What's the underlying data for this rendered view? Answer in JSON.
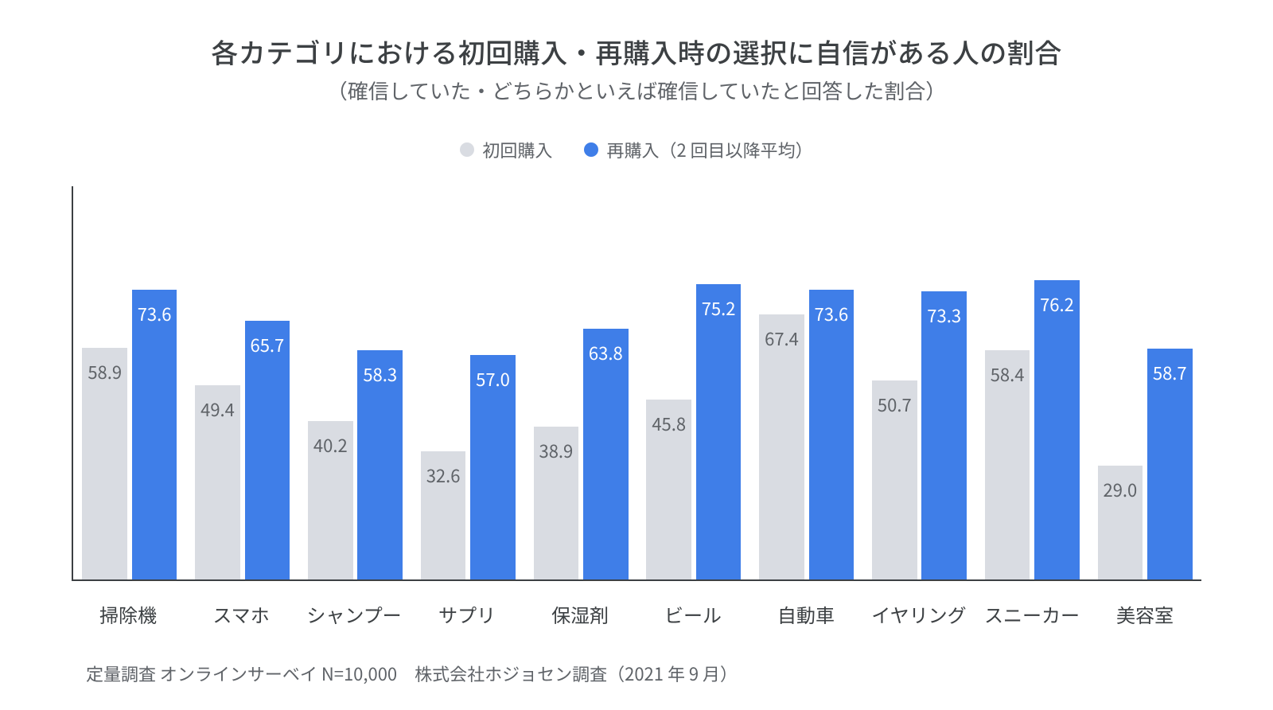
{
  "title": "各カテゴリにおける初回購入・再購入時の選択に自信がある人の割合",
  "subtitle": "（確信していた・どちらかといえば確信していたと回答した割合）",
  "legend": {
    "series_a": {
      "label": "初回購入",
      "color": "#d9dce2"
    },
    "series_b": {
      "label": "再購入（2 回目以降平均）",
      "color": "#3f7ee8"
    }
  },
  "chart": {
    "type": "bar",
    "y_max": 100,
    "axis_color": "#3c4043",
    "background_color": "#ffffff",
    "bar_a_color": "#d9dce2",
    "bar_b_color": "#3f7ee8",
    "bar_a_text_color": "#5f6368",
    "bar_b_text_color": "#ffffff",
    "label_fontsize": 22,
    "categories": [
      {
        "name": "掃除機",
        "a": 58.9,
        "b": 73.6
      },
      {
        "name": "スマホ",
        "a": 49.4,
        "b": 65.7
      },
      {
        "name": "シャンプー",
        "a": 40.2,
        "b": 58.3
      },
      {
        "name": "サプリ",
        "a": 32.6,
        "b": 57.0
      },
      {
        "name": "保湿剤",
        "a": 38.9,
        "b": 63.8
      },
      {
        "name": "ビール",
        "a": 45.8,
        "b": 75.2
      },
      {
        "name": "自動車",
        "a": 67.4,
        "b": 73.6
      },
      {
        "name": "イヤリング",
        "a": 50.7,
        "b": 73.3
      },
      {
        "name": "スニーカー",
        "a": 58.4,
        "b": 76.2
      },
      {
        "name": "美容室",
        "a": 29.0,
        "b": 58.7
      }
    ]
  },
  "footnote": "定量調査 オンラインサーベイ N=10,000　株式会社ホジョセン調査（2021 年 9 月）"
}
